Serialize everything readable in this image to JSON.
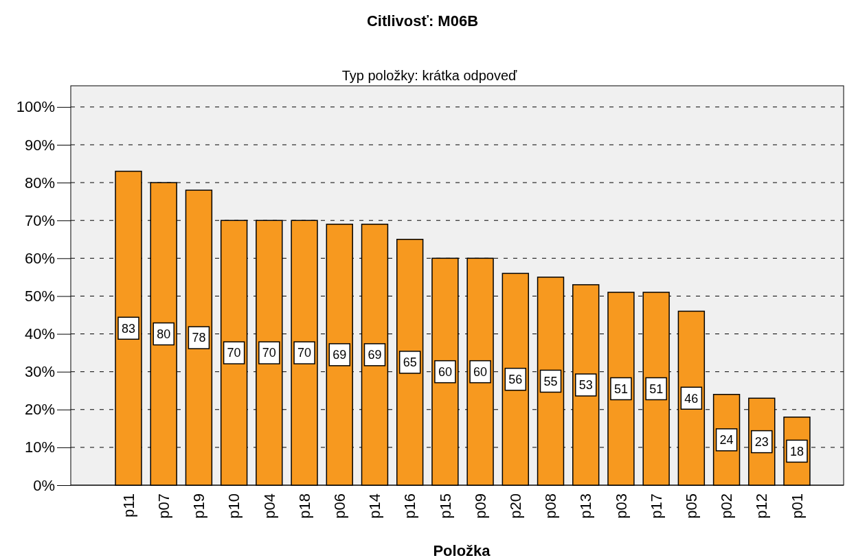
{
  "chart_data": {
    "type": "bar",
    "title": "Citlivosť: M06B",
    "subtitle": "Typ položky: krátka odpoveď",
    "xlabel": "Položka",
    "categories": [
      "p11",
      "p07",
      "p19",
      "p10",
      "p04",
      "p18",
      "p06",
      "p14",
      "p16",
      "p15",
      "p09",
      "p20",
      "p08",
      "p13",
      "p03",
      "p17",
      "p05",
      "p02",
      "p12",
      "p01"
    ],
    "values": [
      83,
      80,
      78,
      70,
      70,
      70,
      69,
      69,
      65,
      60,
      60,
      56,
      55,
      53,
      51,
      51,
      46,
      24,
      23,
      18
    ],
    "color": "#f7991f",
    "ylim": [
      0,
      105.6
    ],
    "yticks": [
      {
        "value": 0,
        "label": "0%"
      },
      {
        "value": 10,
        "label": "10%"
      },
      {
        "value": 20,
        "label": "20%"
      },
      {
        "value": 30,
        "label": "30%"
      },
      {
        "value": 40,
        "label": "40%"
      },
      {
        "value": 50,
        "label": "50%"
      },
      {
        "value": 60,
        "label": "60%"
      },
      {
        "value": 70,
        "label": "70%"
      },
      {
        "value": 80,
        "label": "80%"
      },
      {
        "value": 90,
        "label": "90%"
      },
      {
        "value": 100,
        "label": "100%"
      }
    ],
    "grid": "y",
    "data_labels": true
  }
}
